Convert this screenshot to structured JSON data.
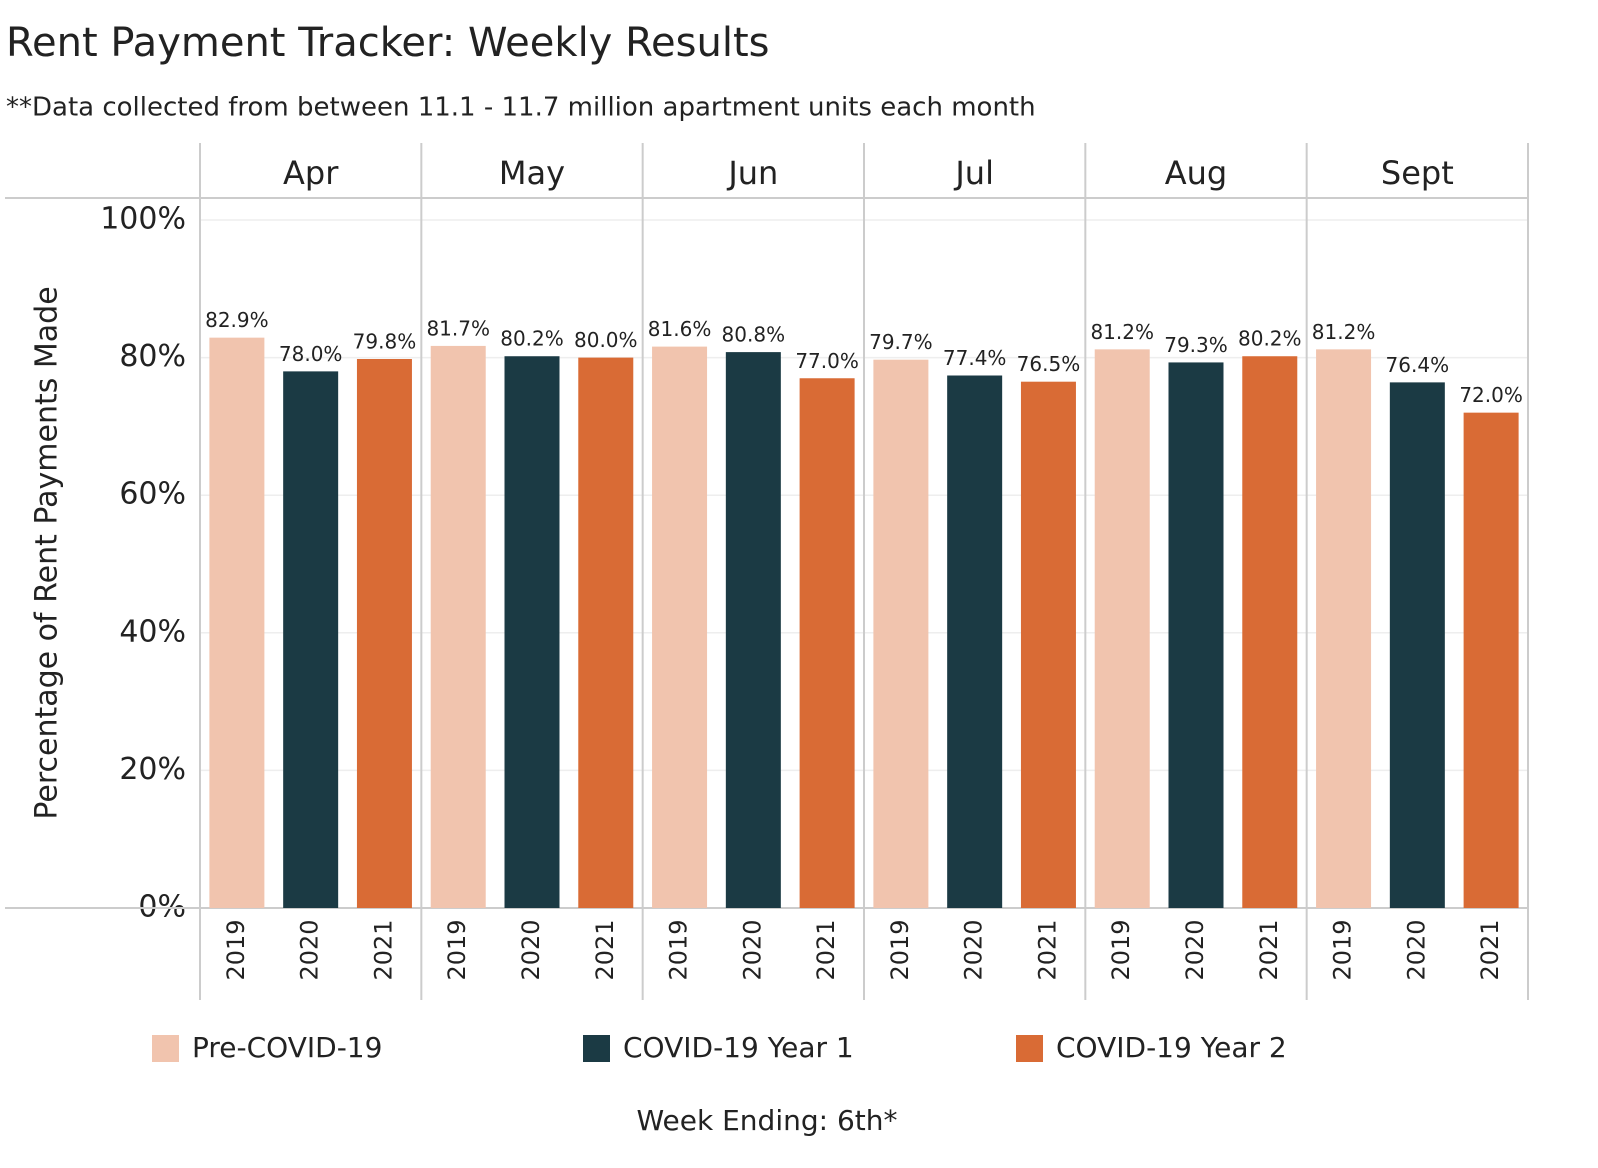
{
  "chart_data": {
    "type": "bar",
    "title": "Rent Payment Tracker: Weekly Results",
    "subtitle": "**Data collected from between 11.1 - 11.7 million apartment units each month",
    "y_label": "Percentage of Rent Payments Made",
    "x_label": "Week Ending: 6th*",
    "categories": [
      "Apr",
      "May",
      "Jun",
      "Jul",
      "Aug",
      "Sept"
    ],
    "years": [
      "2019",
      "2020",
      "2021"
    ],
    "series": [
      {
        "name": "Pre-COVID-19",
        "color": "#f1c4ae",
        "values": [
          82.9,
          81.7,
          81.6,
          79.7,
          81.2,
          81.2
        ],
        "value_labels": [
          "82.9%",
          "81.7%",
          "81.6%",
          "79.7%",
          "81.2%",
          "81.2%"
        ]
      },
      {
        "name": "COVID-19 Year 1",
        "color": "#1b3a44",
        "values": [
          78.0,
          80.2,
          80.8,
          77.4,
          79.3,
          76.4
        ],
        "value_labels": [
          "78.0%",
          "80.2%",
          "80.8%",
          "77.4%",
          "79.3%",
          "76.4%"
        ]
      },
      {
        "name": "COVID-19 Year 2",
        "color": "#d96b35",
        "values": [
          79.8,
          80.0,
          77.0,
          76.5,
          80.2,
          72.0
        ],
        "value_labels": [
          "79.8%",
          "80.0%",
          "77.0%",
          "76.5%",
          "80.2%",
          "72.0%"
        ]
      }
    ],
    "ylim": [
      0,
      103.2
    ],
    "yticks": [
      {
        "value": 0,
        "label": "0%"
      },
      {
        "value": 20,
        "label": "20%"
      },
      {
        "value": 40,
        "label": "40%"
      },
      {
        "value": 60,
        "label": "60%"
      },
      {
        "value": 80,
        "label": "80%"
      },
      {
        "value": 100,
        "label": "100%"
      }
    ],
    "grid": true
  }
}
